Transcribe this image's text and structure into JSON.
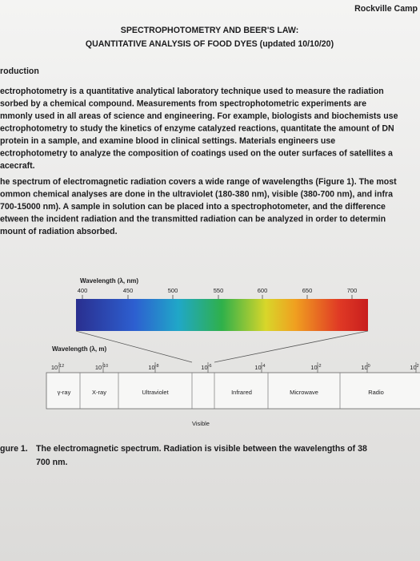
{
  "header": {
    "campus": "Rockville Camp",
    "title": "SPECTROPHOTOMETRY AND BEER'S LAW:",
    "subtitle": "QUANTITATIVE ANALYSIS OF FOOD DYES (updated 10/10/20)"
  },
  "section": {
    "heading": "roduction",
    "paragraphs": [
      [
        "ectrophotometry is a quantitative analytical laboratory technique used to measure the radiation",
        "sorbed by a chemical compound. Measurements from spectrophotometric experiments are",
        "mmonly used in all areas of science and engineering. For example, biologists and biochemists use",
        "ectrophotometry to study the kinetics of enzyme catalyzed reactions, quantitate the amount of DN",
        "protein in a sample, and examine blood in clinical settings. Materials engineers use",
        "ectrophotometry to analyze the composition of coatings used on the outer surfaces of satellites a",
        "acecraft."
      ],
      [
        "he spectrum of electromagnetic radiation covers a wide range of wavelengths (Figure 1). The most",
        "ommon chemical analyses are done in the ultraviolet (180-380 nm), visible (380-700 nm), and infra",
        "700-15000 nm). A sample in solution can be placed into a spectrophotometer, and the difference",
        "etween the incident radiation and the transmitted radiation can be analyzed in order to determin",
        "mount of radiation absorbed."
      ]
    ]
  },
  "figure": {
    "visible_label": "Wavelength (λ, nm)",
    "visible_ticks": [
      "400",
      "450",
      "500",
      "550",
      "600",
      "650",
      "700"
    ],
    "em_label": "Wavelength (λ, m)",
    "em_ticks": [
      {
        "base": "10",
        "exp": "-12"
      },
      {
        "base": "10",
        "exp": "-10"
      },
      {
        "base": "10",
        "exp": "-8"
      },
      {
        "base": "10",
        "exp": "-6"
      },
      {
        "base": "10",
        "exp": "-4"
      },
      {
        "base": "10",
        "exp": "-2"
      },
      {
        "base": "10",
        "exp": "0"
      },
      {
        "base": "10",
        "exp": "2"
      }
    ],
    "bands": [
      "γ-ray",
      "X-ray",
      "Ultraviolet",
      "Infrared",
      "Microwave",
      "Radio"
    ],
    "visible_band": "Visible",
    "caption": {
      "label": "gure 1.",
      "lines": [
        "The electromagnetic spectrum. Radiation is visible between the wavelengths of 38",
        "700 nm."
      ]
    }
  }
}
